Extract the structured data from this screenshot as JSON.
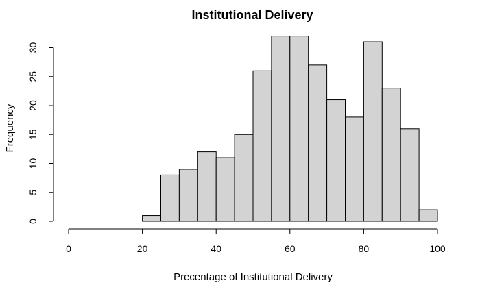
{
  "chart_data": {
    "type": "bar",
    "title": "Institutional Delivery",
    "xlabel": "Precentage of Institutional Delivery",
    "ylabel": "Frequency",
    "bin_edges": [
      20,
      25,
      30,
      35,
      40,
      45,
      50,
      55,
      60,
      65,
      70,
      75,
      80,
      85,
      90,
      95,
      100
    ],
    "values": [
      1,
      8,
      9,
      12,
      11,
      15,
      26,
      32,
      32,
      27,
      21,
      18,
      31,
      23,
      16,
      2
    ],
    "xlim": [
      0,
      100
    ],
    "ylim": [
      0,
      32
    ],
    "x_ticks": [
      0,
      20,
      40,
      60,
      80,
      100
    ],
    "y_ticks": [
      0,
      5,
      10,
      15,
      20,
      25,
      30
    ],
    "grid": false,
    "legend": "none",
    "colors": {
      "bar_fill": "#d3d3d3",
      "bar_stroke": "#000000"
    }
  }
}
